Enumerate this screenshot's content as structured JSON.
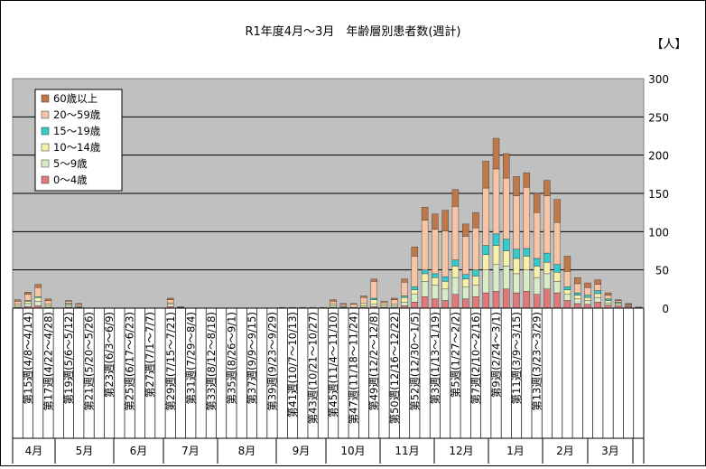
{
  "chart_data": {
    "type": "bar",
    "stacked": true,
    "title": "R1年度4月～3月　年齢層別患者数(週計)",
    "unit": "【人】",
    "ylim": [
      0,
      300
    ],
    "yticks": [
      0,
      50,
      100,
      150,
      200,
      250,
      300
    ],
    "grid": true,
    "legend_position": "top-left",
    "colors": {
      "background": "#c0c0c0",
      "age0_4": "#e07a7a",
      "age5_9": "#d8ecc8",
      "age10_14": "#f7f0a8",
      "age15_19": "#33cccc",
      "age20_59": "#f7c4a4",
      "age60": "#c07848"
    },
    "legend": [
      "60歳以上",
      "20～59歳",
      "15～19歳",
      "10～14歳",
      "5～9歳",
      "0～4歳"
    ],
    "series": [
      {
        "name": "0～4歳",
        "values": [
          1,
          2,
          3,
          1,
          0,
          1,
          1,
          0,
          0,
          0,
          0,
          0,
          0,
          0,
          0,
          2,
          0,
          0,
          0,
          0,
          0,
          0,
          0,
          0,
          0,
          0,
          0,
          0,
          0,
          0,
          0,
          1,
          1,
          0,
          1,
          2,
          1,
          1,
          3,
          8,
          15,
          12,
          10,
          18,
          12,
          15,
          20,
          22,
          25,
          20,
          22,
          18,
          25,
          20,
          10,
          6,
          5,
          8,
          4,
          3,
          2,
          1
        ]
      },
      {
        "name": "5～9歳",
        "values": [
          2,
          4,
          6,
          2,
          0,
          2,
          1,
          0,
          0,
          0,
          0,
          0,
          0,
          0,
          0,
          3,
          0,
          0,
          0,
          0,
          0,
          0,
          0,
          0,
          0,
          0,
          0,
          0,
          0,
          0,
          0,
          2,
          1,
          0,
          2,
          3,
          2,
          2,
          5,
          10,
          20,
          18,
          15,
          22,
          16,
          15,
          30,
          35,
          30,
          25,
          28,
          22,
          20,
          15,
          8,
          6,
          5,
          6,
          3,
          2,
          1,
          1
        ]
      },
      {
        "name": "10～14歳",
        "values": [
          2,
          3,
          5,
          2,
          0,
          2,
          1,
          0,
          0,
          0,
          0,
          0,
          0,
          0,
          0,
          2,
          0,
          0,
          0,
          0,
          0,
          0,
          0,
          0,
          0,
          0,
          0,
          0,
          0,
          0,
          0,
          2,
          1,
          1,
          3,
          6,
          2,
          2,
          6,
          6,
          10,
          10,
          10,
          15,
          10,
          12,
          20,
          25,
          20,
          20,
          18,
          15,
          15,
          12,
          6,
          5,
          4,
          5,
          3,
          2,
          1,
          0
        ]
      },
      {
        "name": "15～19歳",
        "values": [
          0,
          1,
          1,
          0,
          0,
          1,
          0,
          0,
          0,
          0,
          0,
          0,
          0,
          0,
          0,
          0,
          0,
          0,
          0,
          0,
          0,
          0,
          0,
          0,
          0,
          0,
          0,
          0,
          0,
          0,
          0,
          0,
          0,
          0,
          0,
          2,
          0,
          0,
          2,
          4,
          5,
          5,
          6,
          8,
          6,
          8,
          12,
          15,
          15,
          12,
          10,
          10,
          12,
          10,
          4,
          3,
          3,
          4,
          2,
          1,
          0,
          0
        ]
      },
      {
        "name": "20～59歳",
        "values": [
          4,
          8,
          12,
          5,
          0,
          3,
          2,
          0,
          0,
          0,
          0,
          0,
          0,
          0,
          0,
          4,
          1,
          0,
          0,
          0,
          0,
          0,
          0,
          0,
          0,
          0,
          1,
          1,
          1,
          1,
          1,
          4,
          2,
          4,
          8,
          22,
          3,
          6,
          18,
          40,
          65,
          58,
          60,
          70,
          50,
          55,
          75,
          85,
          80,
          70,
          80,
          60,
          75,
          55,
          20,
          12,
          10,
          8,
          5,
          2,
          1,
          0
        ]
      },
      {
        "name": "60歳以上",
        "values": [
          2,
          3,
          4,
          2,
          0,
          1,
          1,
          0,
          0,
          0,
          0,
          0,
          0,
          0,
          0,
          2,
          1,
          0,
          0,
          0,
          0,
          0,
          0,
          0,
          0,
          0,
          0,
          0,
          0,
          0,
          0,
          2,
          1,
          1,
          2,
          3,
          1,
          2,
          4,
          12,
          17,
          20,
          27,
          22,
          16,
          20,
          35,
          40,
          32,
          25,
          19,
          25,
          20,
          30,
          20,
          8,
          6,
          6,
          3,
          1,
          1,
          0
        ]
      }
    ],
    "tick_labels": [
      "第15週(4/8～4/14)",
      "第17週(4/22～4/28)",
      "第19週(5/6～5/12)",
      "第21週(5/20～5/26)",
      "第23週(6/3～6/9)",
      "第25週(6/17～6/23)",
      "第27週(7/1～7/7)",
      "第29週(7/15～7/21)",
      "第31週(7/29～8/4)",
      "第33週(8/12～8/18)",
      "第35週(8/26～9/1)",
      "第37週(9/9～9/15)",
      "第39週(9/23～9/29)",
      "第41週(10/7～10/13)",
      "第43週(10/21～10/27)",
      "第45週(11/4～11/10)",
      "第47週(11/18～11/24)",
      "第49週(12/2～12/8)",
      "第50週(12/16～12/22)",
      "第52週(12/30～1/5)",
      "第3週(1/13～1/19)",
      "第5週(1/27～2/2)",
      "第7週(2/10～2/16)",
      "第9週(2/24～3/1)",
      "第11週(3/9～3/15)",
      "第13週(3/23～3/29)"
    ],
    "months": [
      "4月",
      "5月",
      "6月",
      "7月",
      "8月",
      "9月",
      "10月",
      "11月",
      "12月",
      "1月",
      "2月",
      "3月"
    ]
  }
}
